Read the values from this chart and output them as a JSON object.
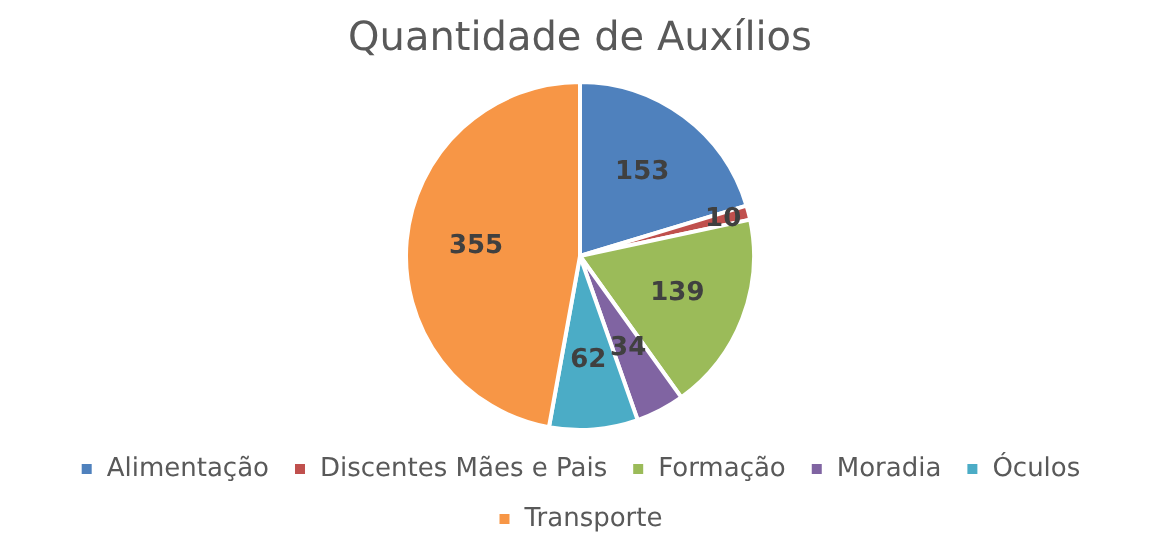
{
  "chart_data": {
    "type": "pie",
    "title": "Quantidade de Auxílios",
    "categories": [
      "Alimentação",
      "Discentes Mães e Pais",
      "Formação",
      "Moradia",
      "Óculos",
      "Transporte"
    ],
    "values": [
      153,
      10,
      139,
      34,
      62,
      355
    ],
    "colors": [
      "#4f81bd",
      "#c0504d",
      "#9bbb59",
      "#8064a2",
      "#4bacc6",
      "#f79646"
    ],
    "data_labels": true,
    "legend": "bottom"
  }
}
